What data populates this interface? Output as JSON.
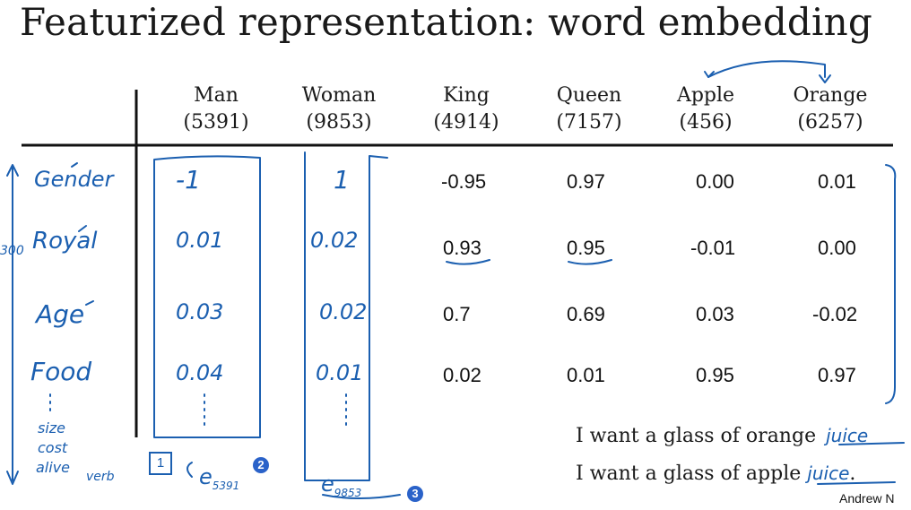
{
  "title": "Featurized representation: word embedding",
  "columns": [
    {
      "word": "Man",
      "index": "(5391)"
    },
    {
      "word": "Woman",
      "index": "(9853)"
    },
    {
      "word": "King",
      "index": "(4914)"
    },
    {
      "word": "Queen",
      "index": "(7157)"
    },
    {
      "word": "Apple",
      "index": "(456)"
    },
    {
      "word": "Orange",
      "index": "(6257)"
    }
  ],
  "rows": [
    {
      "label": "Gender",
      "man": "-1",
      "woman": "1",
      "king": "-0.95",
      "queen": "0.97",
      "apple": "0.00",
      "orange": "0.01"
    },
    {
      "label": "Royal",
      "man": "0.01",
      "woman": "0.02",
      "king": "0.93",
      "queen": "0.95",
      "apple": "-0.01",
      "orange": "0.00"
    },
    {
      "label": "Age",
      "man": "0.03",
      "woman": "0.02",
      "king": "0.7",
      "queen": "0.69",
      "apple": "0.03",
      "orange": "-0.02"
    },
    {
      "label": "Food",
      "man": "0.04",
      "woman": "0.01",
      "king": "0.02",
      "queen": "0.01",
      "apple": "0.95",
      "orange": "0.97"
    }
  ],
  "extra_features": [
    "size",
    "cost",
    "alive",
    "verb"
  ],
  "dimension_label": "300",
  "vector_labels": {
    "man": "e5391",
    "woman": "e9853"
  },
  "badges": {
    "man": "2",
    "woman": "3",
    "box": "1"
  },
  "sentences": [
    {
      "text": "I want a glass of orange",
      "blank": "juice"
    },
    {
      "text": "I want a glass of apple",
      "blank": "juice",
      "end": "."
    }
  ],
  "watermark": "Andrew N",
  "colors": {
    "ink": "#1b5fb0",
    "text": "#1a1a1a",
    "badge": "#2a62c9"
  }
}
